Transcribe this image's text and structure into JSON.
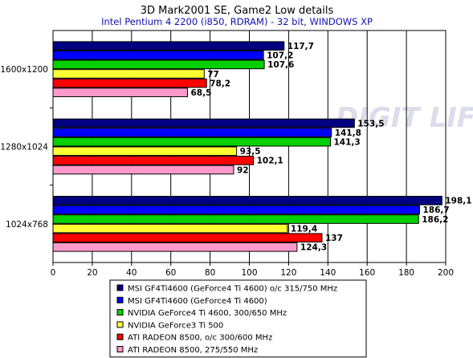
{
  "chart_data": {
    "type": "bar",
    "orientation": "horizontal",
    "title": "3D Mark2001 SE, Game2 Low details",
    "subtitle": "Intel Pentium 4 2200 (i850, RDRAM) - 32 bit, WINDOWS XP",
    "categories": [
      "1600x1200",
      "1280x1024",
      "1024x768"
    ],
    "xlim": [
      0,
      200
    ],
    "xticks": [
      0,
      20,
      40,
      60,
      80,
      100,
      120,
      140,
      160,
      180,
      200
    ],
    "grid": true,
    "legend_position": "bottom",
    "watermark": "DIGIT LIFE",
    "series": [
      {
        "name": "MSI GF4Ti4600 (GeForce4 Ti 4600) o/c 315/750 MHz",
        "color": "#000080",
        "values": [
          117.7,
          153.5,
          198.1
        ],
        "labels": [
          "117,7",
          "153,5",
          "198,1"
        ]
      },
      {
        "name": "MSI GF4Ti4600 (GeForce4 Ti 4600)",
        "color": "#0000ff",
        "values": [
          107.2,
          141.8,
          186.7
        ],
        "labels": [
          "107,2",
          "141,8",
          "186,7"
        ]
      },
      {
        "name": "NVIDIA GeForce4 Ti 4600, 300/650 MHz",
        "color": "#00d000",
        "values": [
          107.6,
          141.3,
          186.2
        ],
        "labels": [
          "107,6",
          "141,3",
          "186,2"
        ]
      },
      {
        "name": "NVIDIA GeForce3 Ti 500",
        "color": "#ffff33",
        "values": [
          77,
          93.5,
          119.4
        ],
        "labels": [
          "77",
          "93,5",
          "119,4"
        ]
      },
      {
        "name": "ATI RADEON 8500, o/c 300/600 MHz",
        "color": "#ff0000",
        "values": [
          78.2,
          102.1,
          137
        ],
        "labels": [
          "78,2",
          "102,1",
          "137"
        ]
      },
      {
        "name": "ATI RADEON 8500, 275/550 MHz",
        "color": "#ff99cc",
        "values": [
          68.5,
          92,
          124.3
        ],
        "labels": [
          "68,5",
          "92",
          "124,3"
        ]
      }
    ]
  }
}
